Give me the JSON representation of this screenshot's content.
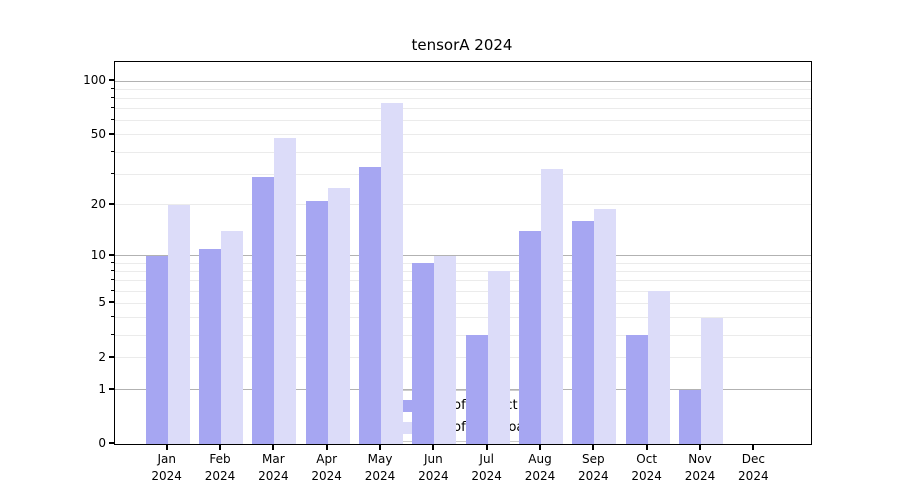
{
  "title": "tensorA 2024",
  "legend": {
    "items": [
      {
        "label": "Nb of distinct IPs",
        "color": "#a6a6f2"
      },
      {
        "label": "Nb of downloads",
        "color": "#dcdcf9"
      }
    ]
  },
  "colors": {
    "bar_distinct_ips": "#a6a6f2",
    "bar_downloads": "#dcdcf9",
    "grid_major": "#b2b2b2",
    "grid_minor": "#ebebeb",
    "axis": "#000000",
    "legend_border": "#cccccc"
  },
  "chart_data": {
    "type": "bar",
    "title": "tensorA 2024",
    "categories": [
      "Jan 2024",
      "Feb 2024",
      "Mar 2024",
      "Apr 2024",
      "May 2024",
      "Jun 2024",
      "Jul 2024",
      "Aug 2024",
      "Sep 2024",
      "Oct 2024",
      "Nov 2024",
      "Dec 2024"
    ],
    "series": [
      {
        "name": "Nb of distinct IPs",
        "color": "#a6a6f2",
        "values": [
          10,
          11,
          29,
          21,
          33,
          9,
          3,
          14,
          16,
          3,
          1,
          0
        ]
      },
      {
        "name": "Nb of downloads",
        "color": "#dcdcf9",
        "values": [
          20,
          14,
          48,
          25,
          76,
          10,
          8,
          32,
          19,
          6,
          4,
          0
        ]
      }
    ],
    "xlabel": "",
    "ylabel": "",
    "yscale": "log1p",
    "ylim": [
      0,
      128
    ],
    "yticks": [
      0,
      1,
      2,
      5,
      10,
      20,
      50,
      100
    ],
    "grid_major": [
      1,
      10,
      100
    ],
    "grid_minor": [
      2,
      3,
      4,
      5,
      6,
      7,
      8,
      9,
      20,
      30,
      40,
      50,
      60,
      70,
      80,
      90
    ],
    "grid": "on",
    "legend_position": "lower center"
  }
}
